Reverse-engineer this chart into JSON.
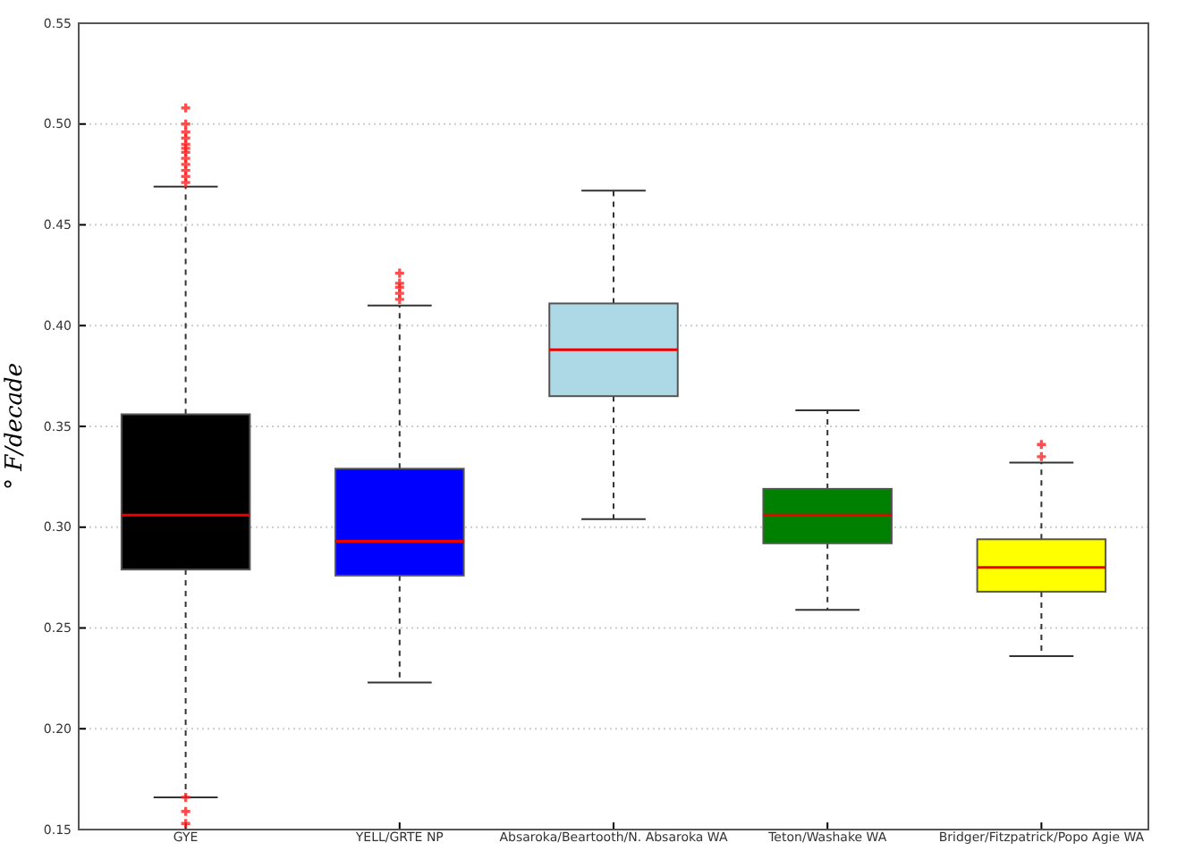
{
  "chart_data": {
    "type": "box",
    "ylabel": "° F/decade",
    "categories": [
      "GYE",
      "YELL/GRTE NP",
      "Absaroka/Beartooth/N. Absaroka WA",
      "Teton/Washake WA",
      "Bridger/Fitzpatrick/Popo Agie WA"
    ],
    "colors": [
      "#000000",
      "#0000ff",
      "#add8e6",
      "#008000",
      "#ffff00"
    ],
    "boxes": [
      {
        "low": 0.166,
        "q1": 0.279,
        "median": 0.306,
        "q3": 0.356,
        "high": 0.469,
        "outliers": [
          0.153,
          0.159,
          0.166,
          0.471,
          0.474,
          0.477,
          0.48,
          0.483,
          0.486,
          0.488,
          0.49,
          0.493,
          0.496,
          0.5,
          0.508
        ]
      },
      {
        "low": 0.223,
        "q1": 0.276,
        "median": 0.293,
        "q3": 0.329,
        "high": 0.41,
        "outliers": [
          0.413,
          0.416,
          0.419,
          0.421,
          0.426
        ]
      },
      {
        "low": 0.304,
        "q1": 0.365,
        "median": 0.388,
        "q3": 0.411,
        "high": 0.467
      },
      {
        "low": 0.259,
        "q1": 0.292,
        "median": 0.306,
        "q3": 0.319,
        "high": 0.358
      },
      {
        "low": 0.236,
        "q1": 0.268,
        "median": 0.28,
        "q3": 0.294,
        "high": 0.332,
        "outliers": [
          0.335,
          0.341
        ]
      }
    ],
    "ylim": [
      0.15,
      0.55
    ],
    "yticks": [
      {
        "value": 0.15,
        "label": "0.15"
      },
      {
        "value": 0.2,
        "label": "0.20"
      },
      {
        "value": 0.25,
        "label": "0.25"
      },
      {
        "value": 0.3,
        "label": "0.30"
      },
      {
        "value": 0.35,
        "label": "0.35"
      },
      {
        "value": 0.4,
        "label": "0.40"
      },
      {
        "value": 0.45,
        "label": "0.45"
      },
      {
        "value": 0.5,
        "label": "0.50"
      },
      {
        "value": 0.55,
        "label": "0.55"
      }
    ],
    "grid": "y",
    "marker": "cross"
  }
}
